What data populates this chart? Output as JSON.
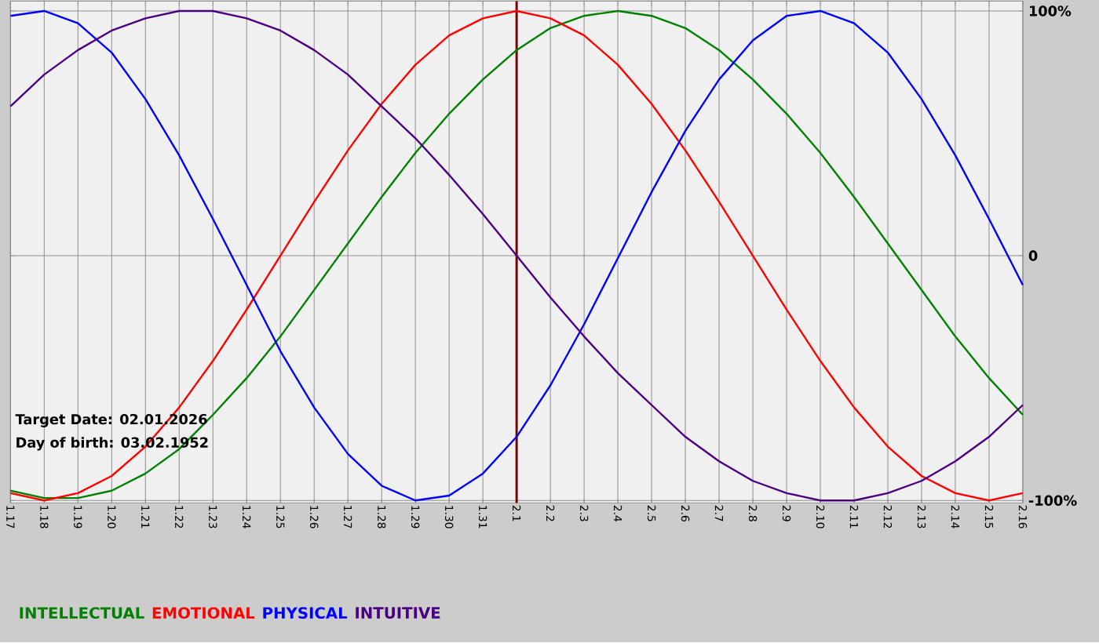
{
  "chart_data": {
    "type": "line",
    "categories": [
      "1.17",
      "1.18",
      "1.19",
      "1.20",
      "1.21",
      "1.22",
      "1.23",
      "1.24",
      "1.25",
      "1.26",
      "1.27",
      "1.28",
      "1.29",
      "1.30",
      "1.31",
      "2.1",
      "2.2",
      "2.3",
      "2.4",
      "2.5",
      "2.6",
      "2.7",
      "2.8",
      "2.9",
      "2.10",
      "2.11",
      "2.12",
      "2.13",
      "2.14",
      "2.15",
      "2.16"
    ],
    "series": [
      {
        "name": "INTELLECTUAL",
        "color": "#008000",
        "values": [
          -0.96,
          -0.99,
          -0.99,
          -0.96,
          -0.89,
          -0.79,
          -0.65,
          -0.5,
          -0.33,
          -0.14,
          0.05,
          0.24,
          0.42,
          0.58,
          0.72,
          0.84,
          0.93,
          0.98,
          1.0,
          0.98,
          0.93,
          0.84,
          0.72,
          0.58,
          0.42,
          0.24,
          0.05,
          -0.14,
          -0.33,
          -0.5,
          -0.65
        ]
      },
      {
        "name": "EMOTIONAL",
        "color": "#ff0000",
        "values": [
          -0.97,
          -1.0,
          -0.97,
          -0.9,
          -0.78,
          -0.62,
          -0.43,
          -0.22,
          0.0,
          0.22,
          0.43,
          0.62,
          0.78,
          0.9,
          0.97,
          1.0,
          0.97,
          0.9,
          0.78,
          0.62,
          0.43,
          0.22,
          0.0,
          -0.22,
          -0.43,
          -0.62,
          -0.78,
          -0.9,
          -0.97,
          -1.0,
          -0.97
        ]
      },
      {
        "name": "PHYSICAL",
        "color": "#0000ff",
        "values": [
          0.98,
          1.0,
          0.95,
          0.83,
          0.64,
          0.41,
          0.15,
          -0.12,
          -0.39,
          -0.62,
          -0.81,
          -0.94,
          -1.0,
          -0.98,
          -0.89,
          -0.74,
          -0.53,
          -0.28,
          -0.01,
          0.26,
          0.51,
          0.72,
          0.88,
          0.98,
          1.0,
          0.95,
          0.83,
          0.64,
          0.41,
          0.15,
          -0.12
        ]
      },
      {
        "name": "INTUITIVE",
        "color": "#4b0082",
        "values": [
          0.61,
          0.74,
          0.84,
          0.92,
          0.97,
          1.0,
          1.0,
          0.97,
          0.92,
          0.84,
          0.74,
          0.61,
          0.48,
          0.33,
          0.17,
          0.0,
          -0.17,
          -0.33,
          -0.48,
          -0.61,
          -0.74,
          -0.84,
          -0.92,
          -0.97,
          -1.0,
          -1.0,
          -0.97,
          -0.92,
          -0.84,
          -0.74,
          -0.61
        ]
      }
    ],
    "ylim": [
      -1.01,
      1.04
    ],
    "yticks": [
      {
        "value": 1,
        "label": "100%"
      },
      0,
      {
        "value": -1,
        "label": "-100%"
      }
    ],
    "grid": true,
    "legend": "bottom",
    "line_style": "solid",
    "ref_lines": [
      {
        "axis": "x",
        "value": "2.1",
        "color": "#800000"
      }
    ],
    "annotations": [
      "Target Date: 02.01.2026",
      "Day of birth: 03.02.1952"
    ]
  }
}
